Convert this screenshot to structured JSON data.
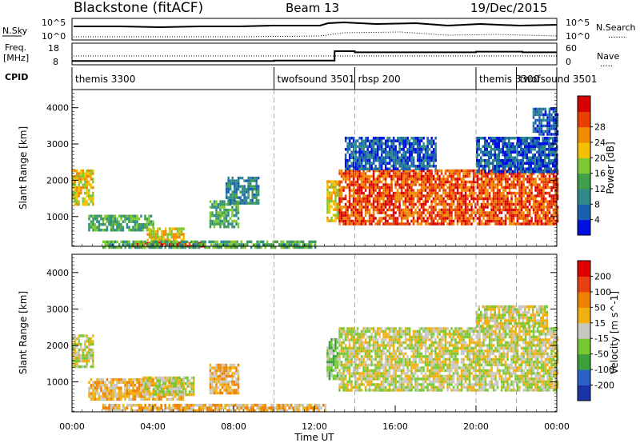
{
  "header": {
    "station": "Blackstone (fitACF)",
    "beam": "Beam 13",
    "date": "19/Dec/2015"
  },
  "top_panels": {
    "nsky_label": "N.Sky",
    "nsearch_label": "N.Search",
    "noise_ticks": [
      "10^5",
      "10^0"
    ],
    "freq_label": "Freq.",
    "freq_unit": "[MHz]",
    "freq_ticks": [
      "18",
      "8"
    ],
    "nave_label": "Nave",
    "nave_ticks": [
      "60",
      "0"
    ],
    "cpid_label": "CPID",
    "cpid_entries": [
      {
        "name": "themis 3300",
        "start_hour": 0
      },
      {
        "name": "twofsound 3501",
        "start_hour": 10
      },
      {
        "name": "rbsp 200",
        "start_hour": 14
      },
      {
        "name": "themis 3300",
        "start_hour": 20
      },
      {
        "name": "twofsound 3501",
        "start_hour": 22
      }
    ],
    "freq_steps": [
      {
        "from": 0,
        "to": 10,
        "value": 10.4
      },
      {
        "from": 10,
        "to": 13,
        "value": 10.6
      },
      {
        "from": 13,
        "to": 14,
        "value": 16.5
      },
      {
        "from": 14,
        "to": 20,
        "value": 15.8
      },
      {
        "from": 20,
        "to": 22.3,
        "value": 16.2
      },
      {
        "from": 22.3,
        "to": 24,
        "value": 15.8
      }
    ]
  },
  "chart_data": [
    {
      "type": "heatmap",
      "name": "power",
      "xlabel": "",
      "ylabel": "Slant Range [km]",
      "xlim": [
        0,
        24
      ],
      "ylim": [
        180,
        4500
      ],
      "yticks": [
        1000,
        2000,
        3000,
        4000
      ],
      "colorbar_label": "Power [dB]",
      "colorbar_ticks": [
        "4",
        "8",
        "12",
        "16",
        "20",
        "24",
        "28"
      ],
      "colorbar_colors": [
        "#0010e0",
        "#1a5fb0",
        "#2e8b8a",
        "#40a04a",
        "#7ec832",
        "#f5c000",
        "#f08a00",
        "#e84000",
        "#d80000"
      ],
      "regions": [
        {
          "hours": [
            0.0,
            1.0
          ],
          "range": [
            1350,
            2300
          ],
          "level": 5
        },
        {
          "hours": [
            0.8,
            4.0
          ],
          "range": [
            650,
            1050
          ],
          "level": 3
        },
        {
          "hours": [
            3.7,
            5.5
          ],
          "range": [
            250,
            700
          ],
          "level": 5
        },
        {
          "hours": [
            3.0,
            6.5
          ],
          "range": [
            180,
            300
          ],
          "level": 8
        },
        {
          "hours": [
            6.8,
            8.2
          ],
          "range": [
            750,
            1450
          ],
          "level": 3
        },
        {
          "hours": [
            7.6,
            9.2
          ],
          "range": [
            1400,
            2100
          ],
          "level": 2
        },
        {
          "hours": [
            1.5,
            12.0
          ],
          "range": [
            180,
            340
          ],
          "level": 3
        },
        {
          "hours": [
            12.6,
            13.2
          ],
          "range": [
            900,
            2000
          ],
          "level": 5
        },
        {
          "hours": [
            13.2,
            24.0
          ],
          "range": [
            800,
            2300
          ],
          "level": 7
        },
        {
          "hours": [
            13.5,
            18.0
          ],
          "range": [
            2300,
            3200
          ],
          "level": 1
        },
        {
          "hours": [
            20.0,
            24.0
          ],
          "range": [
            2200,
            3200
          ],
          "level": 1
        },
        {
          "hours": [
            22.8,
            24.0
          ],
          "range": [
            3300,
            4000
          ],
          "level": 1
        }
      ]
    },
    {
      "type": "heatmap",
      "name": "velocity",
      "xlabel": "Time UT",
      "ylabel": "Slant Range [km]",
      "xlim": [
        0,
        24
      ],
      "ylim": [
        180,
        4500
      ],
      "xticks": [
        "00:00",
        "04:00",
        "08:00",
        "12:00",
        "16:00",
        "20:00",
        "00:00"
      ],
      "yticks": [
        1000,
        2000,
        3000,
        4000
      ],
      "colorbar_label": "Velocity [m s^-1]",
      "colorbar_ticks": [
        "200",
        "100",
        "50",
        "15",
        "-15",
        "-50",
        "-100",
        "-200"
      ],
      "colorbar_colors": [
        "#1a34a8",
        "#2a63c8",
        "#3aa03a",
        "#78c832",
        "#c8c8c0",
        "#f0b010",
        "#f08000",
        "#e84010",
        "#e00000"
      ],
      "regions": [
        {
          "hours": [
            0.0,
            1.0
          ],
          "range": [
            1400,
            2300
          ],
          "level": 4
        },
        {
          "hours": [
            0.8,
            5.5
          ],
          "range": [
            550,
            1100
          ],
          "level": 5
        },
        {
          "hours": [
            3.5,
            6.0
          ],
          "range": [
            650,
            1150
          ],
          "level": 4
        },
        {
          "hours": [
            6.8,
            8.2
          ],
          "range": [
            700,
            1500
          ],
          "level": 5
        },
        {
          "hours": [
            1.5,
            12.5
          ],
          "range": [
            180,
            400
          ],
          "level": 5
        },
        {
          "hours": [
            12.6,
            13.1
          ],
          "range": [
            1100,
            2200
          ],
          "level": 3
        },
        {
          "hours": [
            13.2,
            24.0
          ],
          "range": [
            800,
            2500
          ],
          "level": 4
        },
        {
          "hours": [
            20.0,
            23.5
          ],
          "range": [
            2500,
            3100
          ],
          "level": 4
        }
      ]
    }
  ],
  "reference_lines_hours": [
    10,
    14,
    20,
    22
  ]
}
